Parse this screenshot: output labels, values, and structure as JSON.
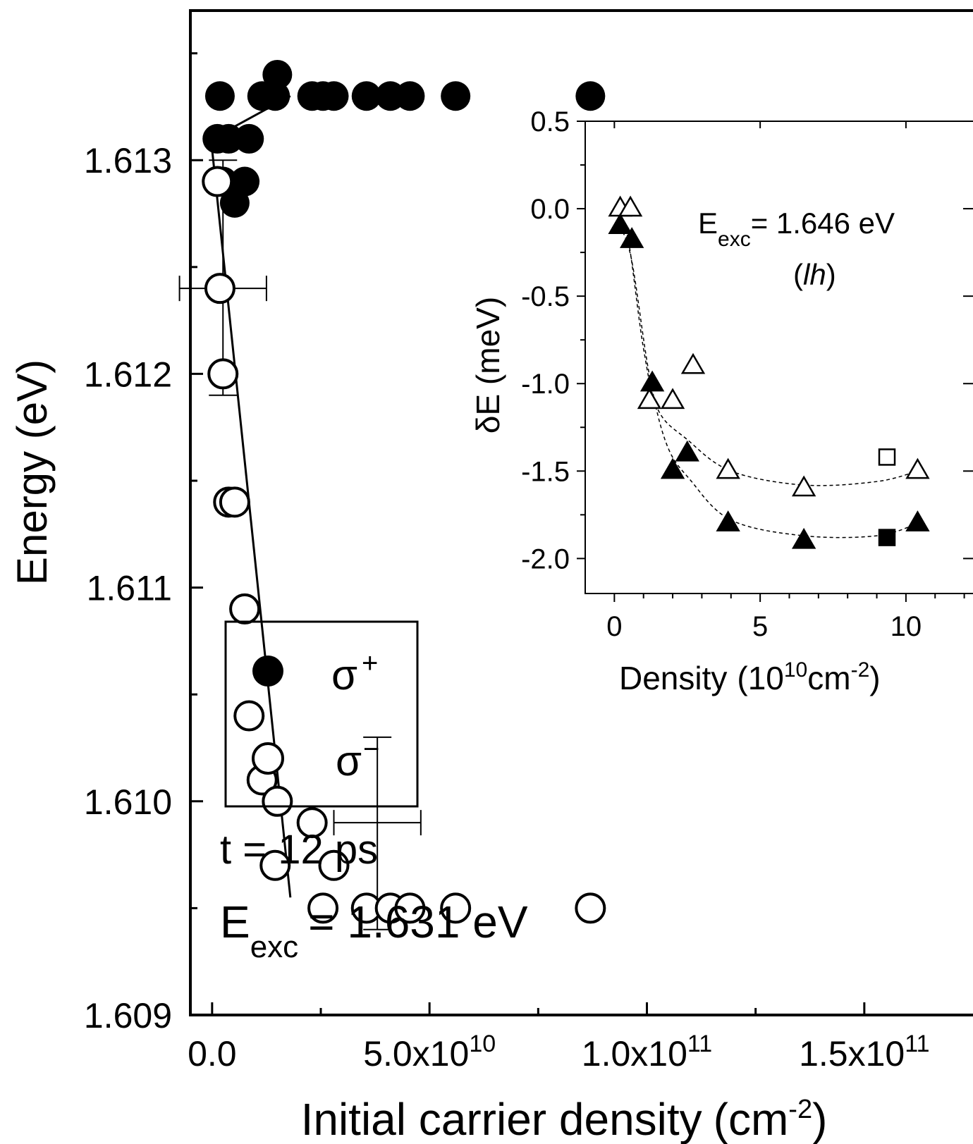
{
  "chart_data": [
    {
      "type": "scatter",
      "title": "",
      "xlabel": "Initial carrier density",
      "xlabel_unit_open": "(cm",
      "xlabel_unit_exp": "-2",
      "xlabel_unit_close": ")",
      "ylabel": "Energy (eV)",
      "xlim": [
        -5000000000.0,
        175000000000.0
      ],
      "ylim": [
        1.609,
        1.6137
      ],
      "x_ticks": [
        {
          "value": 0,
          "label": "0.0"
        },
        {
          "value": 50000000000.0,
          "mant": "5.0x10",
          "exp": "10"
        },
        {
          "value": 100000000000.0,
          "mant": "1.0x10",
          "exp": "11"
        },
        {
          "value": 150000000000.0,
          "mant": "1.5x10",
          "exp": "11"
        }
      ],
      "y_ticks": [
        {
          "value": 1.609,
          "label": "1.609"
        },
        {
          "value": 1.61,
          "label": "1.610"
        },
        {
          "value": 1.611,
          "label": "1.611"
        },
        {
          "value": 1.612,
          "label": "1.612"
        },
        {
          "value": 1.613,
          "label": "1.613"
        }
      ],
      "series": [
        {
          "name": "σ+",
          "marker": "filled-circle",
          "x": [
            1200000000.0,
            1800000000.0,
            2500000000.0,
            3800000000.0,
            5200000000.0,
            7500000000.0,
            8500000000.0,
            11500000000.0,
            14500000000.0,
            15000000000.0,
            23000000000.0,
            25500000000.0,
            28000000000.0,
            35500000000.0,
            41000000000.0,
            45500000000.0,
            56000000000.0,
            87000000000.0
          ],
          "y": [
            1.6131,
            1.6133,
            1.6129,
            1.6131,
            1.6128,
            1.6129,
            1.6131,
            1.6133,
            1.6133,
            1.6134,
            1.6133,
            1.6133,
            1.6133,
            1.6133,
            1.6133,
            1.6133,
            1.6133,
            1.6133
          ]
        },
        {
          "name": "σ−",
          "marker": "open-circle",
          "x": [
            1200000000.0,
            1800000000.0,
            2500000000.0,
            3800000000.0,
            5200000000.0,
            7500000000.0,
            8500000000.0,
            11500000000.0,
            14500000000.0,
            15000000000.0,
            23000000000.0,
            25500000000.0,
            28000000000.0,
            35500000000.0,
            41000000000.0,
            45500000000.0,
            56000000000.0,
            87000000000.0
          ],
          "y": [
            1.6129,
            1.6124,
            1.612,
            1.6114,
            1.6114,
            1.6109,
            1.6104,
            1.6101,
            1.6097,
            1.61,
            1.6099,
            1.6095,
            1.6097,
            1.6095,
            1.6095,
            1.6095,
            1.6095,
            1.6095
          ]
        }
      ],
      "fit_lines": [
        {
          "series": "σ+",
          "x": [
            0,
            18000000000.0
          ],
          "y": [
            1.6131,
            1.6133
          ]
        },
        {
          "series": "σ−",
          "x": [
            0,
            18000000000.0
          ],
          "y": [
            1.61305,
            1.60955
          ]
        }
      ],
      "error_bars": [
        {
          "x": 2500000000.0,
          "y": 1.6124,
          "xerr": 10000000000.0,
          "yerr_low": 0.0005,
          "yerr_high": 0.0006
        },
        {
          "x": 38000000000.0,
          "y": 1.6099,
          "xerr": 10000000000.0,
          "yerr_low": 0.0005,
          "yerr_high": 0.0004
        }
      ],
      "legend": {
        "placement": "bottom-left",
        "entries": [
          {
            "marker": "filled-circle",
            "symbol": "σ",
            "sup": "+"
          },
          {
            "marker": "open-circle",
            "symbol": "σ",
            "sup": "−"
          }
        ]
      },
      "annotations": {
        "time": "t = 12 ps",
        "energy_main": "E",
        "energy_sub": "exc",
        "energy_value": "= 1.631 eV"
      }
    },
    {
      "type": "scatter",
      "title": "",
      "xlabel": "Density",
      "xlabel_unit_open": "(10",
      "xlabel_unit_exp1": "10",
      "xlabel_unit_mid": "cm",
      "xlabel_unit_exp2": "-2",
      "xlabel_unit_close": ")",
      "ylabel": "δE (meV)",
      "xlim": [
        -1,
        12.3
      ],
      "ylim": [
        -2.2,
        0.5
      ],
      "x_ticks": [
        {
          "value": 0,
          "label": "0"
        },
        {
          "value": 5,
          "label": "5"
        },
        {
          "value": 10,
          "label": "10"
        }
      ],
      "y_ticks": [
        {
          "value": 0.5,
          "label": "0.5"
        },
        {
          "value": 0.0,
          "label": "0.0"
        },
        {
          "value": -0.5,
          "label": "-0.5"
        },
        {
          "value": -1.0,
          "label": "-1.0"
        },
        {
          "value": -1.5,
          "label": "-1.5"
        },
        {
          "value": -2.0,
          "label": "-2.0"
        }
      ],
      "series": [
        {
          "marker": "open-triangle",
          "x": [
            0.2,
            0.55,
            1.2,
            2.0,
            2.7,
            3.9,
            6.5,
            10.4
          ],
          "y": [
            0.0,
            0.0,
            -1.1,
            -1.1,
            -0.9,
            -1.5,
            -1.6,
            -1.5
          ]
        },
        {
          "marker": "filled-triangle",
          "x": [
            0.2,
            0.6,
            1.3,
            2.0,
            2.5,
            3.9,
            6.5,
            10.4
          ],
          "y": [
            -0.1,
            -0.18,
            -1.0,
            -1.5,
            -1.4,
            -1.8,
            -1.9,
            -1.8
          ]
        },
        {
          "marker": "open-square",
          "x": [
            9.35
          ],
          "y": [
            -1.42
          ]
        },
        {
          "marker": "filled-square",
          "x": [
            9.35
          ],
          "y": [
            -1.88
          ]
        }
      ],
      "guide_curves": [
        {
          "style": "dashed",
          "x": [
            0.2,
            0.5,
            1.0,
            1.5,
            2.5,
            4.0,
            6.5,
            9.0,
            10.4
          ],
          "y": [
            -0.05,
            -0.2,
            -0.8,
            -1.15,
            -1.32,
            -1.5,
            -1.58,
            -1.56,
            -1.5
          ]
        },
        {
          "style": "dashed",
          "x": [
            0.2,
            0.6,
            1.2,
            1.8,
            2.6,
            4.0,
            6.5,
            9.0,
            10.4
          ],
          "y": [
            -0.1,
            -0.3,
            -0.95,
            -1.35,
            -1.55,
            -1.78,
            -1.87,
            -1.87,
            -1.8
          ]
        }
      ],
      "annotations": {
        "energy_main": "E",
        "energy_sub": "exc",
        "energy_value": "= 1.646 eV",
        "band_open": "(",
        "band_label": "lh",
        "band_close": ")"
      }
    }
  ]
}
